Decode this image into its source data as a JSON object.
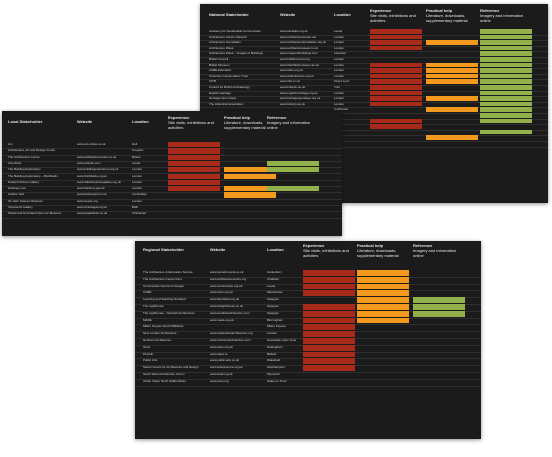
{
  "colors": {
    "panel_bg": "#1b1b1b",
    "row_divider": "#2e2e2e",
    "experience": "#a82a1a",
    "practical_help": "#f39a1e",
    "reference": "#92b14a"
  },
  "panels": [
    {
      "key": "national",
      "headers": {
        "stakeholder": "National Stakeholder",
        "website": "Website",
        "location": "Location",
        "experience_title": "Experience",
        "experience_sub": "Site visits, exhibitions and activities",
        "practical_title": "Practical help",
        "practical_sub": "Literature, downloads, supplementary material",
        "reference_title": "Reference",
        "reference_sub": "Imagery and information online"
      },
      "rows": [
        {
          "name": "Academy for Sustainable Communities",
          "site": "www.ascskills.org.uk",
          "loc": "Leeds",
          "exp": true,
          "prac": false,
          "ref": true
        },
        {
          "name": "Architecture Centre Network",
          "site": "www.architecturecentre.net",
          "loc": "London",
          "exp": true,
          "prac": false,
          "ref": true
        },
        {
          "name": "Architecture Foundation",
          "site": "www.architecturefoundation.org.uk",
          "loc": "London",
          "exp": true,
          "prac": true,
          "ref": true
        },
        {
          "name": "Architecture Week",
          "site": "www.architectureweek.co.uk",
          "loc": "London",
          "exp": true,
          "prac": false,
          "ref": true
        },
        {
          "name": "Architecture Week – Images of Buildings",
          "site": "www.imagesofbuildings.com",
          "loc": "Leicester",
          "exp": false,
          "prac": false,
          "ref": true
        },
        {
          "name": "British Council",
          "site": "www.britishcouncil.org",
          "loc": "London",
          "exp": false,
          "prac": false,
          "ref": true
        },
        {
          "name": "British Museum",
          "site": "www.thebritishmuseum.ac.uk",
          "loc": "London",
          "exp": true,
          "prac": true,
          "ref": true
        },
        {
          "name": "CABE Education",
          "site": "www.cabe.org.uk",
          "loc": "London",
          "exp": true,
          "prac": true,
          "ref": true
        },
        {
          "name": "Churches Conservation Trust",
          "site": "www.visitchurches.org.uk",
          "loc": "London",
          "exp": true,
          "prac": true,
          "ref": true
        },
        {
          "name": "CITB",
          "site": "www.citb.co.uk",
          "loc": "King's Lynn",
          "exp": true,
          "prac": true,
          "ref": true
        },
        {
          "name": "Council for British Archaeology",
          "site": "www.britarch.ac.uk",
          "loc": "York",
          "exp": true,
          "prac": false,
          "ref": true
        },
        {
          "name": "English Heritage",
          "site": "www.english-heritage.org.uk",
          "loc": "London",
          "exp": true,
          "prac": false,
          "ref": true
        },
        {
          "name": "Heritage Open Days",
          "site": "www.heritageopendays.org.uk",
          "loc": "London",
          "exp": true,
          "prac": true,
          "ref": true
        },
        {
          "name": "The Historical Association",
          "site": "www.history.org.uk",
          "loc": "London",
          "exp": true,
          "prac": false,
          "ref": true
        },
        {
          "name": "",
          "site": "",
          "loc": "Colchester",
          "exp": false,
          "prac": true,
          "ref": true
        },
        {
          "name": "",
          "site": "",
          "loc": "",
          "exp": false,
          "prac": false,
          "ref": true
        },
        {
          "name": "",
          "site": "",
          "loc": "",
          "exp": true,
          "prac": false,
          "ref": true
        },
        {
          "name": "",
          "site": "",
          "loc": "",
          "exp": true,
          "prac": false,
          "ref": false
        },
        {
          "name": "",
          "site": "",
          "loc": "",
          "exp": false,
          "prac": false,
          "ref": true
        },
        {
          "name": "",
          "site": "",
          "loc": "",
          "exp": false,
          "prac": true,
          "ref": false
        },
        {
          "name": "",
          "site": "",
          "loc": "",
          "exp": false,
          "prac": false,
          "ref": false
        }
      ]
    },
    {
      "key": "local",
      "headers": {
        "stakeholder": "Local Stakeholder",
        "website": "Website",
        "location": "Location",
        "experience_title": "Experience",
        "experience_sub": "Site visits, exhibitions and activities",
        "practical_title": "Practical help",
        "practical_sub": "Literature, downloads, supplementary material",
        "reference_title": "Reference",
        "reference_sub": "Imagery and information online"
      },
      "rows": [
        {
          "name": "Arc",
          "site": "www.arc-online.co.uk",
          "loc": "Hull",
          "exp": true,
          "prac": false,
          "ref": false
        },
        {
          "name": "Architecture, Art and Design Centre",
          "site": "",
          "loc": "Croydon",
          "exp": true,
          "prac": false,
          "ref": false
        },
        {
          "name": "The Architecture Centre",
          "site": "www.architecturecentre.co.uk",
          "loc": "Bristol",
          "exp": true,
          "prac": false,
          "ref": false
        },
        {
          "name": "Arts Work",
          "site": "www.artsinfo.com",
          "loc": "Leeds",
          "exp": true,
          "prac": false,
          "ref": true
        },
        {
          "name": "The Building Exploratory",
          "site": "www.buildingexploratory.org.uk",
          "loc": "London",
          "exp": true,
          "prac": true,
          "ref": true
        },
        {
          "name": "The Building Exploratory – Brickfields",
          "site": "www.brickfields.org.uk",
          "loc": "London",
          "exp": true,
          "prac": true,
          "ref": false
        },
        {
          "name": "Dulwich Picture Gallery",
          "site": "www.dulwichpicturegallery.org.uk",
          "loc": "London",
          "exp": true,
          "prac": false,
          "ref": false
        },
        {
          "name": "Hackney Live",
          "site": "www.hackney.gov.uk",
          "loc": "London",
          "exp": true,
          "prac": true,
          "ref": true
        },
        {
          "name": "Kettles Yard",
          "site": "www.kettlesyard.co.uk",
          "loc": "Cambridge",
          "exp": false,
          "prac": true,
          "ref": false
        },
        {
          "name": "Sir John Soane's Museum",
          "site": "www.soane.org",
          "loc": "London",
          "exp": false,
          "prac": false,
          "ref": false
        },
        {
          "name": "Victoria Art Gallery",
          "site": "www.victoriagal.org.uk",
          "loc": "Bath",
          "exp": false,
          "prac": false,
          "ref": false
        },
        {
          "name": "Weald and Downland Open Air Museum",
          "site": "www.wealddown.co.uk",
          "loc": "Chichester",
          "exp": false,
          "prac": false,
          "ref": false
        }
      ]
    },
    {
      "key": "regional",
      "headers": {
        "stakeholder": "Regional Stakeholder",
        "website": "Website",
        "location": "Location",
        "experience_title": "Experience",
        "experience_sub": "Site visits, exhibitions and activities",
        "practical_title": "Practical help",
        "practical_sub": "Literature, downloads, supplementary material",
        "reference_title": "Reference",
        "reference_sub": "Imagery and information online"
      },
      "rows": [
        {
          "name": "The Architecture & Education Service",
          "site": "www.canterburycat.co.uk",
          "loc": "Canterbury",
          "exp": true,
          "prac": true,
          "ref": false
        },
        {
          "name": "The Architecture Centre Kent",
          "site": "www.architecturecentre.org",
          "loc": "Chatham",
          "exp": true,
          "prac": true,
          "ref": false
        },
        {
          "name": "Constructive Centre for Design",
          "site": "www.constructive.org.uk",
          "loc": "Leeds",
          "exp": true,
          "prac": true,
          "ref": false
        },
        {
          "name": "CUBE",
          "site": "www.cube.org.uk",
          "loc": "Manchester",
          "exp": true,
          "prac": true,
          "ref": false
        },
        {
          "name": "Learning and Teaching Scotland",
          "site": "www.ltscotland.org.uk",
          "loc": "Glasgow",
          "exp": false,
          "prac": true,
          "ref": true
        },
        {
          "name": "The Lighthouse",
          "site": "www.thelighthouse.co.uk",
          "loc": "Glasgow",
          "exp": true,
          "prac": true,
          "ref": true
        },
        {
          "name": "The Lighthouse – Scottish Architecture",
          "site": "www.scottisharchitecture.com",
          "loc": "Glasgow",
          "exp": true,
          "prac": true,
          "ref": true
        },
        {
          "name": "MADE",
          "site": "www.made.org.uk",
          "loc": "Birmingham",
          "exp": true,
          "prac": true,
          "ref": false
        },
        {
          "name": "Milton Keynes South Midlands",
          "site": "",
          "loc": "Milton Keynes",
          "exp": true,
          "prac": false,
          "ref": false
        },
        {
          "name": "New London Architecture",
          "site": "www.newlondonarchitecture.org",
          "loc": "London",
          "exp": true,
          "prac": false,
          "ref": false
        },
        {
          "name": "Northern Architecture",
          "site": "www.northernarchitecture.com",
          "loc": "Newcastle Upon Tyne",
          "exp": true,
          "prac": false,
          "ref": false
        },
        {
          "name": "Opus",
          "site": "www.opus.org.uk",
          "loc": "Nottingham",
          "exp": true,
          "prac": false,
          "ref": false
        },
        {
          "name": "PLACE",
          "site": "www.place.ie",
          "loc": "Belfast",
          "exp": true,
          "prac": false,
          "ref": false
        },
        {
          "name": "Public Arts",
          "site": "www.public-arts.co.uk",
          "loc": "Wakefield",
          "exp": true,
          "prac": false,
          "ref": false
        },
        {
          "name": "Solent Centre for Architecture and Design",
          "site": "www.solentcentre.org.uk",
          "loc": "Southampton",
          "exp": true,
          "prac": false,
          "ref": false
        },
        {
          "name": "South West Architecture Forum",
          "site": "www.swaf.org.uk",
          "loc": "Plymouth",
          "exp": false,
          "prac": false,
          "ref": false
        },
        {
          "name": "Urban Vision North Staffordshire",
          "site": "www.uvns.org",
          "loc": "Stoke on Trent",
          "exp": false,
          "prac": false,
          "ref": false
        }
      ]
    }
  ]
}
